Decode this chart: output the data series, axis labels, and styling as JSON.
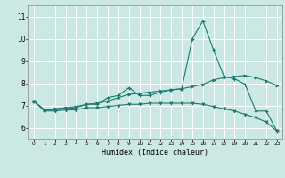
{
  "title": "",
  "xlabel": "Humidex (Indice chaleur)",
  "ylabel": "",
  "bg_color": "#cce8e4",
  "grid_color": "#ffffff",
  "line_color": "#1a7a70",
  "xlim": [
    -0.5,
    23.5
  ],
  "ylim": [
    5.5,
    11.5
  ],
  "yticks": [
    6,
    7,
    8,
    9,
    10,
    11
  ],
  "xticks": [
    0,
    1,
    2,
    3,
    4,
    5,
    6,
    7,
    8,
    9,
    10,
    11,
    12,
    13,
    14,
    15,
    16,
    17,
    18,
    19,
    20,
    21,
    22,
    23
  ],
  "series1_x": [
    0,
    1,
    2,
    3,
    4,
    5,
    6,
    7,
    8,
    9,
    10,
    11,
    12,
    13,
    14,
    15,
    16,
    17,
    18,
    19,
    20,
    21,
    22,
    23
  ],
  "series1_y": [
    7.2,
    6.8,
    6.8,
    6.85,
    6.9,
    7.05,
    7.05,
    7.35,
    7.45,
    7.8,
    7.45,
    7.45,
    7.6,
    7.7,
    7.75,
    10.0,
    10.8,
    9.5,
    8.3,
    8.2,
    7.95,
    6.75,
    6.75,
    5.85
  ],
  "series2_x": [
    0,
    1,
    2,
    3,
    4,
    5,
    6,
    7,
    8,
    9,
    10,
    11,
    12,
    13,
    14,
    15,
    16,
    17,
    18,
    19,
    20,
    21,
    22,
    23
  ],
  "series2_y": [
    7.2,
    6.8,
    6.85,
    6.9,
    6.95,
    7.05,
    7.1,
    7.2,
    7.35,
    7.5,
    7.55,
    7.6,
    7.65,
    7.7,
    7.75,
    7.85,
    7.95,
    8.15,
    8.25,
    8.3,
    8.35,
    8.25,
    8.1,
    7.9
  ],
  "series3_x": [
    0,
    1,
    2,
    3,
    4,
    5,
    6,
    7,
    8,
    9,
    10,
    11,
    12,
    13,
    14,
    15,
    16,
    17,
    18,
    19,
    20,
    21,
    22,
    23
  ],
  "series3_y": [
    7.2,
    6.75,
    6.75,
    6.8,
    6.8,
    6.9,
    6.9,
    6.95,
    7.0,
    7.05,
    7.05,
    7.1,
    7.1,
    7.1,
    7.1,
    7.1,
    7.05,
    6.95,
    6.85,
    6.75,
    6.6,
    6.45,
    6.25,
    5.85
  ]
}
